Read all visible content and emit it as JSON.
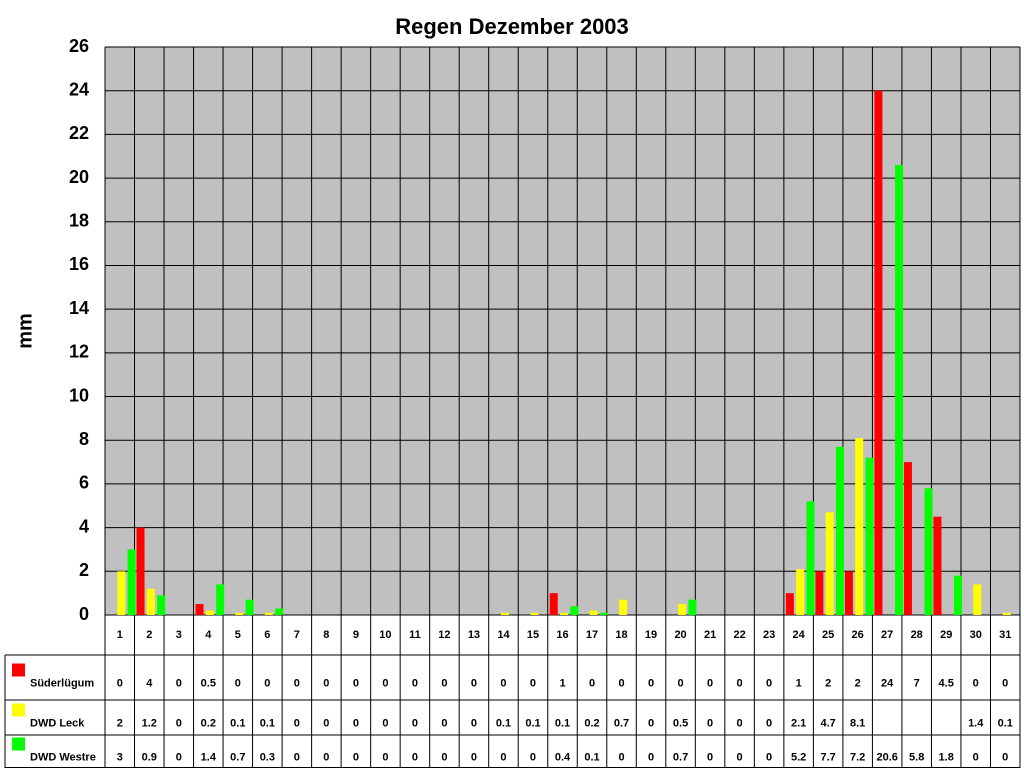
{
  "chart_data": {
    "type": "bar",
    "title": "Regen Dezember 2003",
    "y_label": "mm",
    "categories": [
      "1",
      "2",
      "3",
      "4",
      "5",
      "6",
      "7",
      "8",
      "9",
      "10",
      "11",
      "12",
      "13",
      "14",
      "15",
      "16",
      "17",
      "18",
      "19",
      "20",
      "21",
      "22",
      "23",
      "24",
      "25",
      "26",
      "27",
      "28",
      "29",
      "30",
      "31"
    ],
    "series": [
      {
        "name": "Süderlügum",
        "color": "#ff0000",
        "values": [
          0,
          4,
          0,
          0.5,
          0,
          0,
          0,
          0,
          0,
          0,
          0,
          0,
          0,
          0,
          0,
          1,
          0,
          0,
          0,
          0,
          0,
          0,
          0,
          1,
          2,
          2,
          24,
          7,
          4.5,
          0,
          0
        ]
      },
      {
        "name": "DWD Leck",
        "color": "#ffff00",
        "values": [
          2,
          1.2,
          0,
          0.2,
          0.1,
          0.1,
          0,
          0,
          0,
          0,
          0,
          0,
          0,
          0.1,
          0.1,
          0.1,
          0.2,
          0.7,
          0,
          0.5,
          0,
          0,
          0,
          2.1,
          4.7,
          8.1,
          null,
          null,
          null,
          1.4,
          0.1
        ]
      },
      {
        "name": "DWD Westre",
        "color": "#00ff00",
        "values": [
          3,
          0.9,
          0,
          1.4,
          0.7,
          0.3,
          0,
          0,
          0,
          0,
          0,
          0,
          0,
          0,
          0,
          0.4,
          0.1,
          0,
          0,
          0.7,
          0,
          0,
          0,
          5.2,
          7.7,
          7.2,
          20.6,
          5.8,
          1.8,
          0,
          0
        ]
      }
    ],
    "ylim": [
      0,
      26
    ],
    "yticks": [
      0,
      2,
      4,
      6,
      8,
      10,
      12,
      14,
      16,
      18,
      20,
      22,
      24,
      26
    ],
    "grid": true,
    "plot_background": "#c0c0c0"
  }
}
